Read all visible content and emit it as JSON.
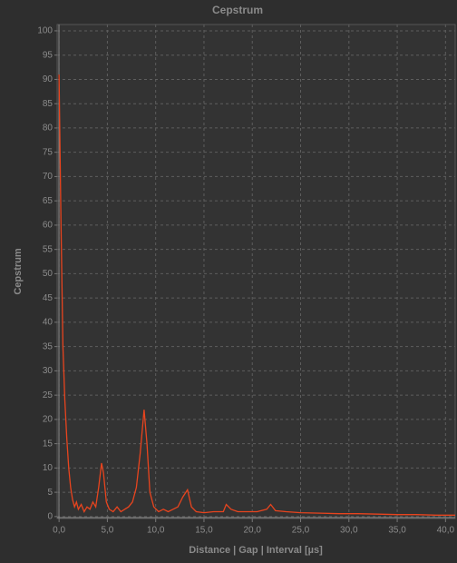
{
  "chart_data": {
    "type": "line",
    "title": "Cepstrum",
    "ylabel": "Cepstrum",
    "xlabel": "Distance | Gap | Interval [µs]",
    "color": "#e8441e",
    "grid": true,
    "x": [
      0,
      0.2,
      0.4,
      0.6,
      0.8,
      1.0,
      1.2,
      1.4,
      1.6,
      1.8,
      2.0,
      2.3,
      2.6,
      2.9,
      3.2,
      3.5,
      3.8,
      4.1,
      4.4,
      4.6,
      4.9,
      5.2,
      5.6,
      6.0,
      6.4,
      6.8,
      7.2,
      7.6,
      8.0,
      8.4,
      8.8,
      9.1,
      9.4,
      9.8,
      10.3,
      10.8,
      11.3,
      11.8,
      12.3,
      12.8,
      13.3,
      13.7,
      14.2,
      15,
      16,
      17,
      17.3,
      17.8,
      18.5,
      19.5,
      20.5,
      21.5,
      21.9,
      22.4,
      23.5,
      25,
      27,
      29,
      31,
      33,
      35,
      37,
      39,
      41
    ],
    "values": [
      91,
      60,
      35,
      24,
      16,
      10,
      6,
      3.5,
      2,
      3,
      1.5,
      2.5,
      1,
      2,
      1.5,
      3,
      2,
      6,
      11,
      9,
      3,
      1.5,
      1,
      2,
      1,
      1.5,
      2,
      3,
      6,
      13,
      22,
      15,
      5,
      2,
      1,
      1.5,
      1,
      1.5,
      2,
      4,
      5.5,
      2,
      1,
      0.8,
      1,
      1,
      2.5,
      1.5,
      1,
      1,
      1,
      1.5,
      2.5,
      1.2,
      1,
      0.8,
      0.7,
      0.6,
      0.6,
      0.5,
      0.4,
      0.4,
      0.3,
      0.3
    ],
    "xlim": [
      -0.2,
      41
    ],
    "ylim": [
      -0.4,
      101.3
    ],
    "xticks": [
      {
        "value": 0,
        "label": "0,0"
      },
      {
        "value": 5,
        "label": "5,0"
      },
      {
        "value": 10,
        "label": "10,0"
      },
      {
        "value": 15,
        "label": "15,0"
      },
      {
        "value": 20,
        "label": "20,0"
      },
      {
        "value": 25,
        "label": "25,0"
      },
      {
        "value": 30,
        "label": "30,0"
      },
      {
        "value": 35,
        "label": "35,0"
      },
      {
        "value": 40,
        "label": "40,0"
      }
    ],
    "yticks": [
      0,
      5,
      10,
      15,
      20,
      25,
      30,
      35,
      40,
      45,
      50,
      55,
      60,
      65,
      70,
      75,
      80,
      85,
      90,
      95,
      100
    ]
  }
}
